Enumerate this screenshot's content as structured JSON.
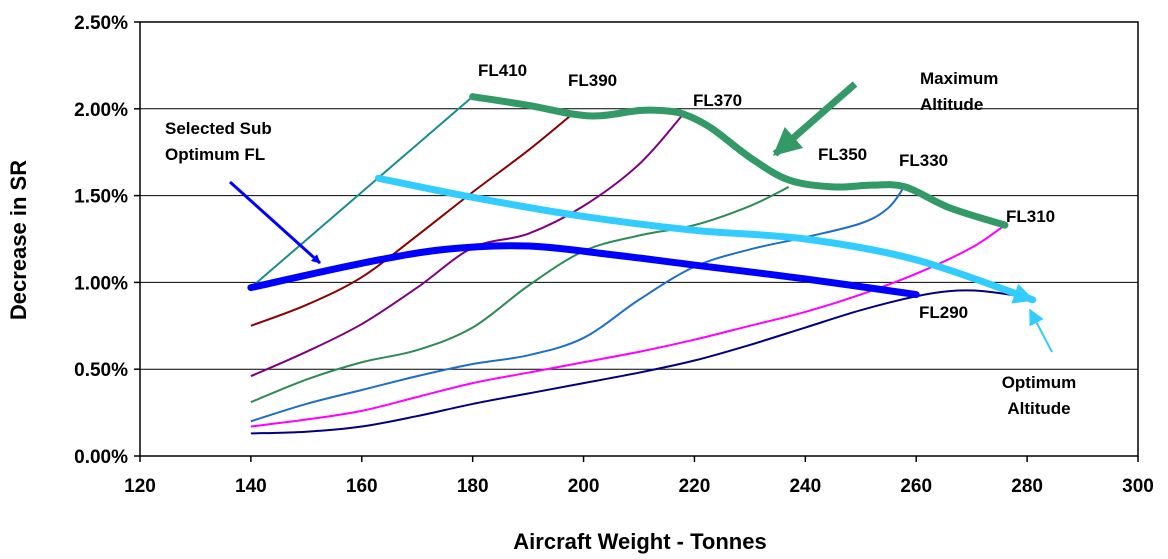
{
  "chart_data": {
    "type": "line",
    "xlabel": "Aircraft Weight - Tonnes",
    "ylabel": "Decrease in SR",
    "xlim": [
      120,
      300
    ],
    "ylim": [
      0,
      0.025
    ],
    "x_ticks": [
      "120",
      "140",
      "160",
      "180",
      "200",
      "220",
      "240",
      "260",
      "280",
      "300"
    ],
    "y_ticks": [
      "0.00%",
      "0.50%",
      "1.00%",
      "1.50%",
      "2.00%",
      "2.50%"
    ],
    "grid": "horizontal",
    "series": [
      {
        "name": "FL410",
        "color": "#1a8c8c",
        "width": 2,
        "points": [
          [
            140,
            0.0097
          ],
          [
            180,
            0.0207
          ]
        ]
      },
      {
        "name": "FL390",
        "color": "#8b0000",
        "width": 2,
        "points": [
          [
            140,
            0.0075
          ],
          [
            150,
            0.0087
          ],
          [
            160,
            0.0103
          ],
          [
            170,
            0.0127
          ],
          [
            180,
            0.0152
          ],
          [
            190,
            0.0176
          ],
          [
            198,
            0.0197
          ]
        ]
      },
      {
        "name": "FL370",
        "color": "#800080",
        "width": 2,
        "points": [
          [
            140,
            0.0046
          ],
          [
            150,
            0.006
          ],
          [
            160,
            0.0076
          ],
          [
            170,
            0.0097
          ],
          [
            180,
            0.012
          ],
          [
            190,
            0.0128
          ],
          [
            200,
            0.0144
          ],
          [
            210,
            0.0168
          ],
          [
            218,
            0.0197
          ]
        ]
      },
      {
        "name": "FL350",
        "color": "#2e8b57",
        "width": 2,
        "points": [
          [
            140,
            0.0031
          ],
          [
            150,
            0.0044
          ],
          [
            160,
            0.0054
          ],
          [
            170,
            0.0061
          ],
          [
            180,
            0.0074
          ],
          [
            190,
            0.0098
          ],
          [
            200,
            0.0118
          ],
          [
            210,
            0.0127
          ],
          [
            220,
            0.0133
          ],
          [
            230,
            0.0144
          ],
          [
            237,
            0.0155
          ]
        ]
      },
      {
        "name": "FL330",
        "color": "#1e6fc8",
        "width": 2,
        "points": [
          [
            140,
            0.002
          ],
          [
            150,
            0.003
          ],
          [
            160,
            0.0038
          ],
          [
            170,
            0.0046
          ],
          [
            180,
            0.0053
          ],
          [
            190,
            0.0058
          ],
          [
            200,
            0.0068
          ],
          [
            210,
            0.009
          ],
          [
            220,
            0.0109
          ],
          [
            230,
            0.0119
          ],
          [
            240,
            0.0126
          ],
          [
            250,
            0.0134
          ],
          [
            255,
            0.0143
          ],
          [
            258,
            0.0156
          ]
        ]
      },
      {
        "name": "FL310",
        "color": "#ff00ff",
        "width": 2,
        "points": [
          [
            140,
            0.0017
          ],
          [
            150,
            0.0021
          ],
          [
            160,
            0.0026
          ],
          [
            170,
            0.0034
          ],
          [
            180,
            0.0042
          ],
          [
            190,
            0.0048
          ],
          [
            200,
            0.0054
          ],
          [
            210,
            0.006
          ],
          [
            220,
            0.0067
          ],
          [
            230,
            0.0075
          ],
          [
            240,
            0.0083
          ],
          [
            250,
            0.0093
          ],
          [
            260,
            0.0105
          ],
          [
            270,
            0.012
          ],
          [
            276,
            0.0133
          ]
        ]
      },
      {
        "name": "FL290",
        "color": "#000080",
        "width": 2,
        "points": [
          [
            140,
            0.0013
          ],
          [
            150,
            0.0014
          ],
          [
            160,
            0.0017
          ],
          [
            170,
            0.0023
          ],
          [
            180,
            0.003
          ],
          [
            190,
            0.0036
          ],
          [
            200,
            0.0042
          ],
          [
            210,
            0.0048
          ],
          [
            220,
            0.0055
          ],
          [
            230,
            0.0064
          ],
          [
            240,
            0.0074
          ],
          [
            250,
            0.0084
          ],
          [
            260,
            0.0092
          ],
          [
            266,
            0.0095
          ],
          [
            272,
            0.0095
          ],
          [
            281,
            0.0091
          ]
        ]
      },
      {
        "name": "Maximum Altitude",
        "color": "#339966",
        "width": 7,
        "points": [
          [
            180,
            0.0207
          ],
          [
            190,
            0.0202
          ],
          [
            198,
            0.0197
          ],
          [
            203,
            0.0196
          ],
          [
            210,
            0.0199
          ],
          [
            214,
            0.0199
          ],
          [
            218,
            0.0197
          ],
          [
            223,
            0.0189
          ],
          [
            230,
            0.0172
          ],
          [
            237,
            0.0159
          ],
          [
            245,
            0.0155
          ],
          [
            252,
            0.0156
          ],
          [
            258,
            0.0155
          ],
          [
            266,
            0.0143
          ],
          [
            276,
            0.0133
          ]
        ]
      },
      {
        "name": "Optimum Altitude",
        "color": "#33ccff",
        "width": 7,
        "points": [
          [
            163,
            0.016
          ],
          [
            180,
            0.0149
          ],
          [
            200,
            0.0138
          ],
          [
            220,
            0.013
          ],
          [
            240,
            0.0125
          ],
          [
            260,
            0.0113
          ],
          [
            281,
            0.009
          ]
        ]
      },
      {
        "name": "Selected Sub Optimum FL",
        "color": "#0000ff",
        "width": 7,
        "points": [
          [
            140,
            0.0097
          ],
          [
            160,
            0.0111
          ],
          [
            175,
            0.0119
          ],
          [
            190,
            0.0121
          ],
          [
            205,
            0.0116
          ],
          [
            220,
            0.011
          ],
          [
            240,
            0.0102
          ],
          [
            260,
            0.0093
          ]
        ]
      }
    ],
    "annotations": [
      {
        "key": "fl410",
        "text": "FL410"
      },
      {
        "key": "fl390",
        "text": "FL390"
      },
      {
        "key": "fl370",
        "text": "FL370"
      },
      {
        "key": "fl350",
        "text": "FL350"
      },
      {
        "key": "fl330",
        "text": "FL330"
      },
      {
        "key": "fl310",
        "text": "FL310"
      },
      {
        "key": "fl290",
        "text": "FL290"
      },
      {
        "key": "max",
        "lines": [
          "Maximum",
          "Altitude"
        ]
      },
      {
        "key": "sub",
        "lines": [
          "Selected Sub",
          "Optimum FL"
        ]
      },
      {
        "key": "opt",
        "lines": [
          "Optimum",
          "Altitude"
        ]
      }
    ]
  }
}
